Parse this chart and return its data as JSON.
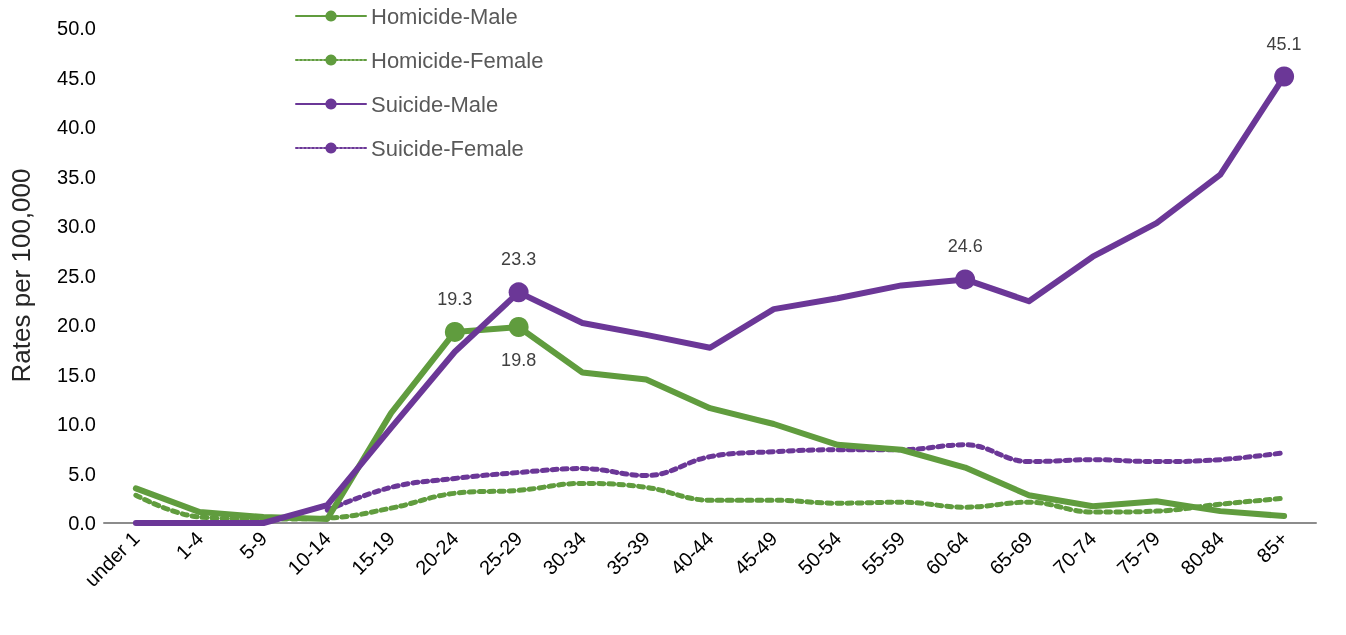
{
  "chart_data": {
    "type": "line",
    "ylabel": "Rates per 100,000",
    "categories": [
      "under 1",
      "1-4",
      "5-9",
      "10-14",
      "15-19",
      "20-24",
      "25-29",
      "30-34",
      "35-39",
      "40-44",
      "45-49",
      "50-54",
      "55-59",
      "60-64",
      "65-69",
      "70-74",
      "75-79",
      "80-84",
      "85+"
    ],
    "series": [
      {
        "name": "Homicide-Male",
        "color": "#609c3e",
        "line_style": "solid",
        "values": [
          3.5,
          1.1,
          0.6,
          0.4,
          11.1,
          19.3,
          19.8,
          15.2,
          14.5,
          11.6,
          10.0,
          7.9,
          7.4,
          5.6,
          2.8,
          1.7,
          2.2,
          1.2,
          0.7
        ],
        "value_labels": [
          null,
          null,
          null,
          null,
          null,
          "19.3",
          "19.8",
          null,
          null,
          null,
          null,
          null,
          null,
          null,
          null,
          null,
          null,
          null,
          null
        ]
      },
      {
        "name": "Homicide-Female",
        "color": "#609c3e",
        "line_style": "dotted",
        "values": [
          2.8,
          0.6,
          0.4,
          0.5,
          1.5,
          3.0,
          3.3,
          4.0,
          3.6,
          2.3,
          2.3,
          2.0,
          2.1,
          1.6,
          2.1,
          1.1,
          1.2,
          1.9,
          2.5
        ]
      },
      {
        "name": "Suicide-Male",
        "color": "#6b3797",
        "line_style": "solid",
        "values": [
          0,
          0,
          0,
          1.8,
          9.6,
          17.3,
          23.3,
          20.2,
          19.0,
          17.7,
          21.6,
          22.7,
          24.0,
          24.6,
          22.4,
          26.9,
          30.3,
          35.2,
          45.1
        ],
        "value_labels": [
          null,
          null,
          null,
          null,
          null,
          null,
          "23.3",
          null,
          null,
          null,
          null,
          null,
          null,
          "24.6",
          null,
          null,
          null,
          null,
          "45.1"
        ]
      },
      {
        "name": "Suicide-Female",
        "color": "#6b3797",
        "line_style": "dotted",
        "values": [
          null,
          null,
          null,
          1.3,
          3.6,
          4.5,
          5.1,
          5.5,
          4.8,
          6.7,
          7.2,
          7.4,
          7.4,
          7.9,
          6.2,
          6.4,
          6.2,
          6.4,
          7.1
        ]
      }
    ],
    "ylim": [
      0,
      50
    ],
    "yticks": [
      {
        "value": 0,
        "label": "0.0"
      },
      {
        "value": 5,
        "label": "5.0"
      },
      {
        "value": 10,
        "label": "10.0"
      },
      {
        "value": 15,
        "label": "15.0"
      },
      {
        "value": 20,
        "label": "20.0"
      },
      {
        "value": 25,
        "label": "25.0"
      },
      {
        "value": 30,
        "label": "30.0"
      },
      {
        "value": 35,
        "label": "35.0"
      },
      {
        "value": 40,
        "label": "40.0"
      },
      {
        "value": 45,
        "label": "45.0"
      },
      {
        "value": 50,
        "label": "50.0"
      }
    ],
    "grid": false,
    "legend": "top left"
  }
}
